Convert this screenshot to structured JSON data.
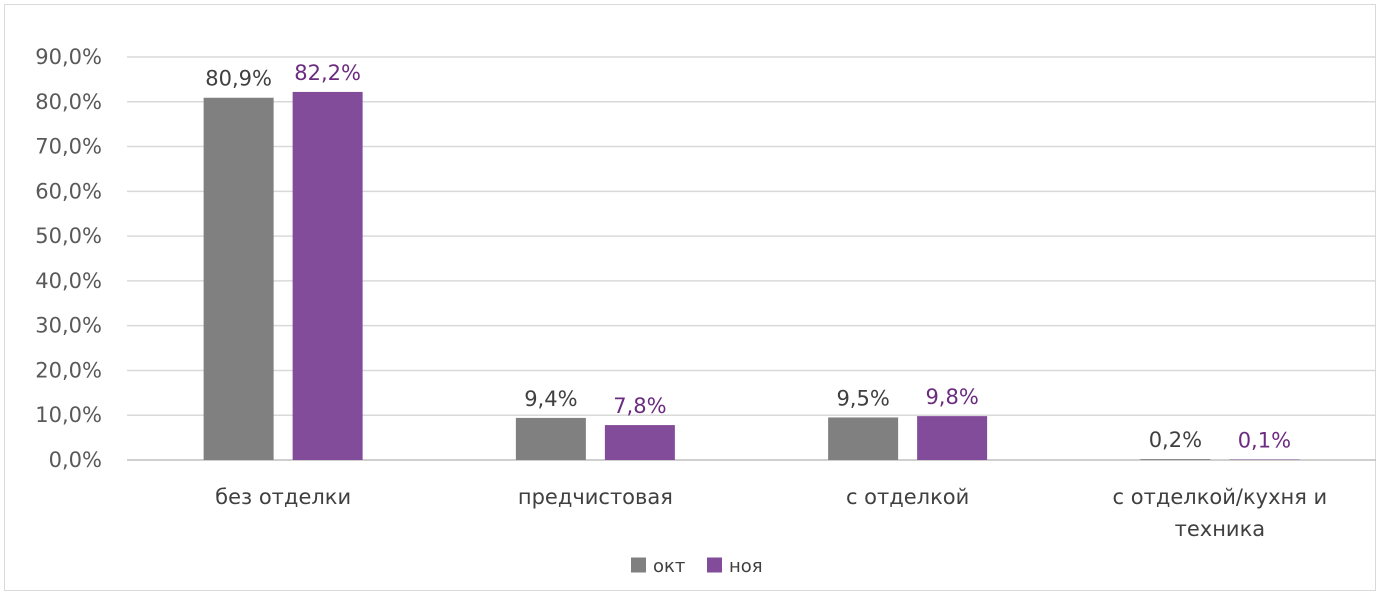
{
  "chart_data": {
    "type": "bar",
    "title": "",
    "xlabel": "",
    "ylabel": "",
    "ylim": [
      0,
      90
    ],
    "yticks": [
      "0,0%",
      "10,0%",
      "20,0%",
      "30,0%",
      "40,0%",
      "50,0%",
      "60,0%",
      "70,0%",
      "80,0%",
      "90,0%"
    ],
    "categories": [
      [
        "без отделки"
      ],
      [
        "предчистовая"
      ],
      [
        "с отделкой"
      ],
      [
        "с отделкой/кухня и",
        "техника"
      ]
    ],
    "series": [
      {
        "name": "окт",
        "color": "#808080",
        "values": [
          80.9,
          9.4,
          9.5,
          0.2
        ],
        "labels": [
          "80,9%",
          "9,4%",
          "9,5%",
          "0,2%"
        ],
        "label_color": "#404040"
      },
      {
        "name": "ноя",
        "color": "#834c9a",
        "values": [
          82.2,
          7.8,
          9.8,
          0.1
        ],
        "labels": [
          "82,2%",
          "7,8%",
          "9,8%",
          "0,1%"
        ],
        "label_color": "#6b2c7f"
      }
    ],
    "grid": true,
    "legend": "bottom"
  }
}
